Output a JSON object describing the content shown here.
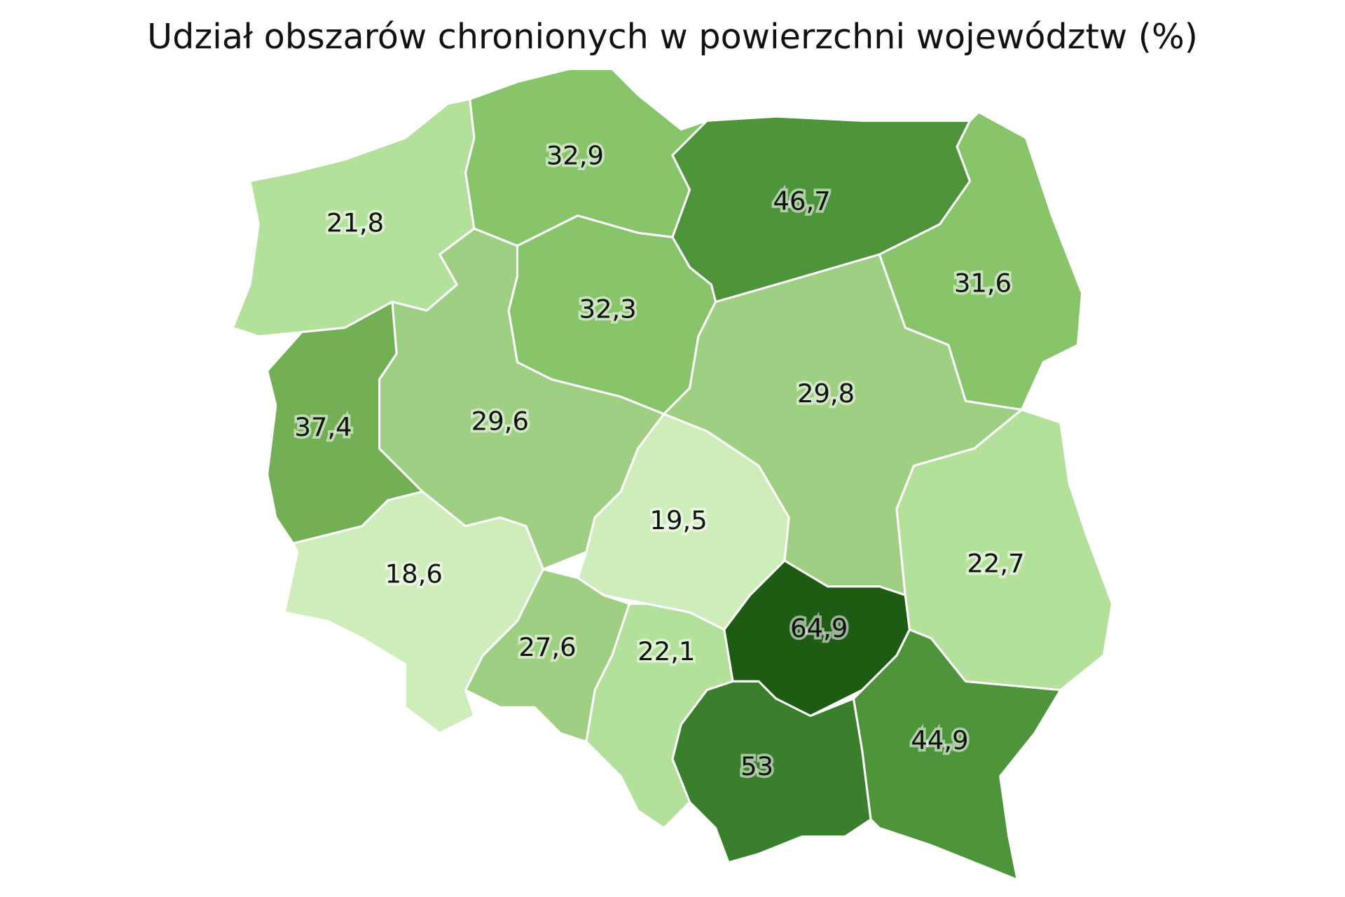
{
  "chart_data": {
    "type": "choropleth",
    "title": "Udział obszarów chronionych w powierzchni województw (%)",
    "values": [
      21.8,
      32.9,
      46.7,
      31.6,
      32.3,
      29.8,
      37.4,
      29.6,
      19.5,
      18.6,
      27.6,
      22.1,
      64.9,
      53,
      44.9,
      22.7
    ],
    "value_labels": [
      "21,8",
      "32,9",
      "46,7",
      "31,6",
      "32,3",
      "29,8",
      "37,4",
      "29,6",
      "19,5",
      "18,6",
      "27,6",
      "22,1",
      "64,9",
      "53",
      "44,9",
      "22,7"
    ],
    "colors": [
      "#b3e09a",
      "#87c46a",
      "#4e943a",
      "#87c46a",
      "#87c46a",
      "#9ecf82",
      "#72af55",
      "#9ecf82",
      "#cfedba",
      "#cfedba",
      "#9ecf82",
      "#b3e09a",
      "#1e5b13",
      "#3a7f2b",
      "#4e943a",
      "#b3e09a"
    ]
  }
}
